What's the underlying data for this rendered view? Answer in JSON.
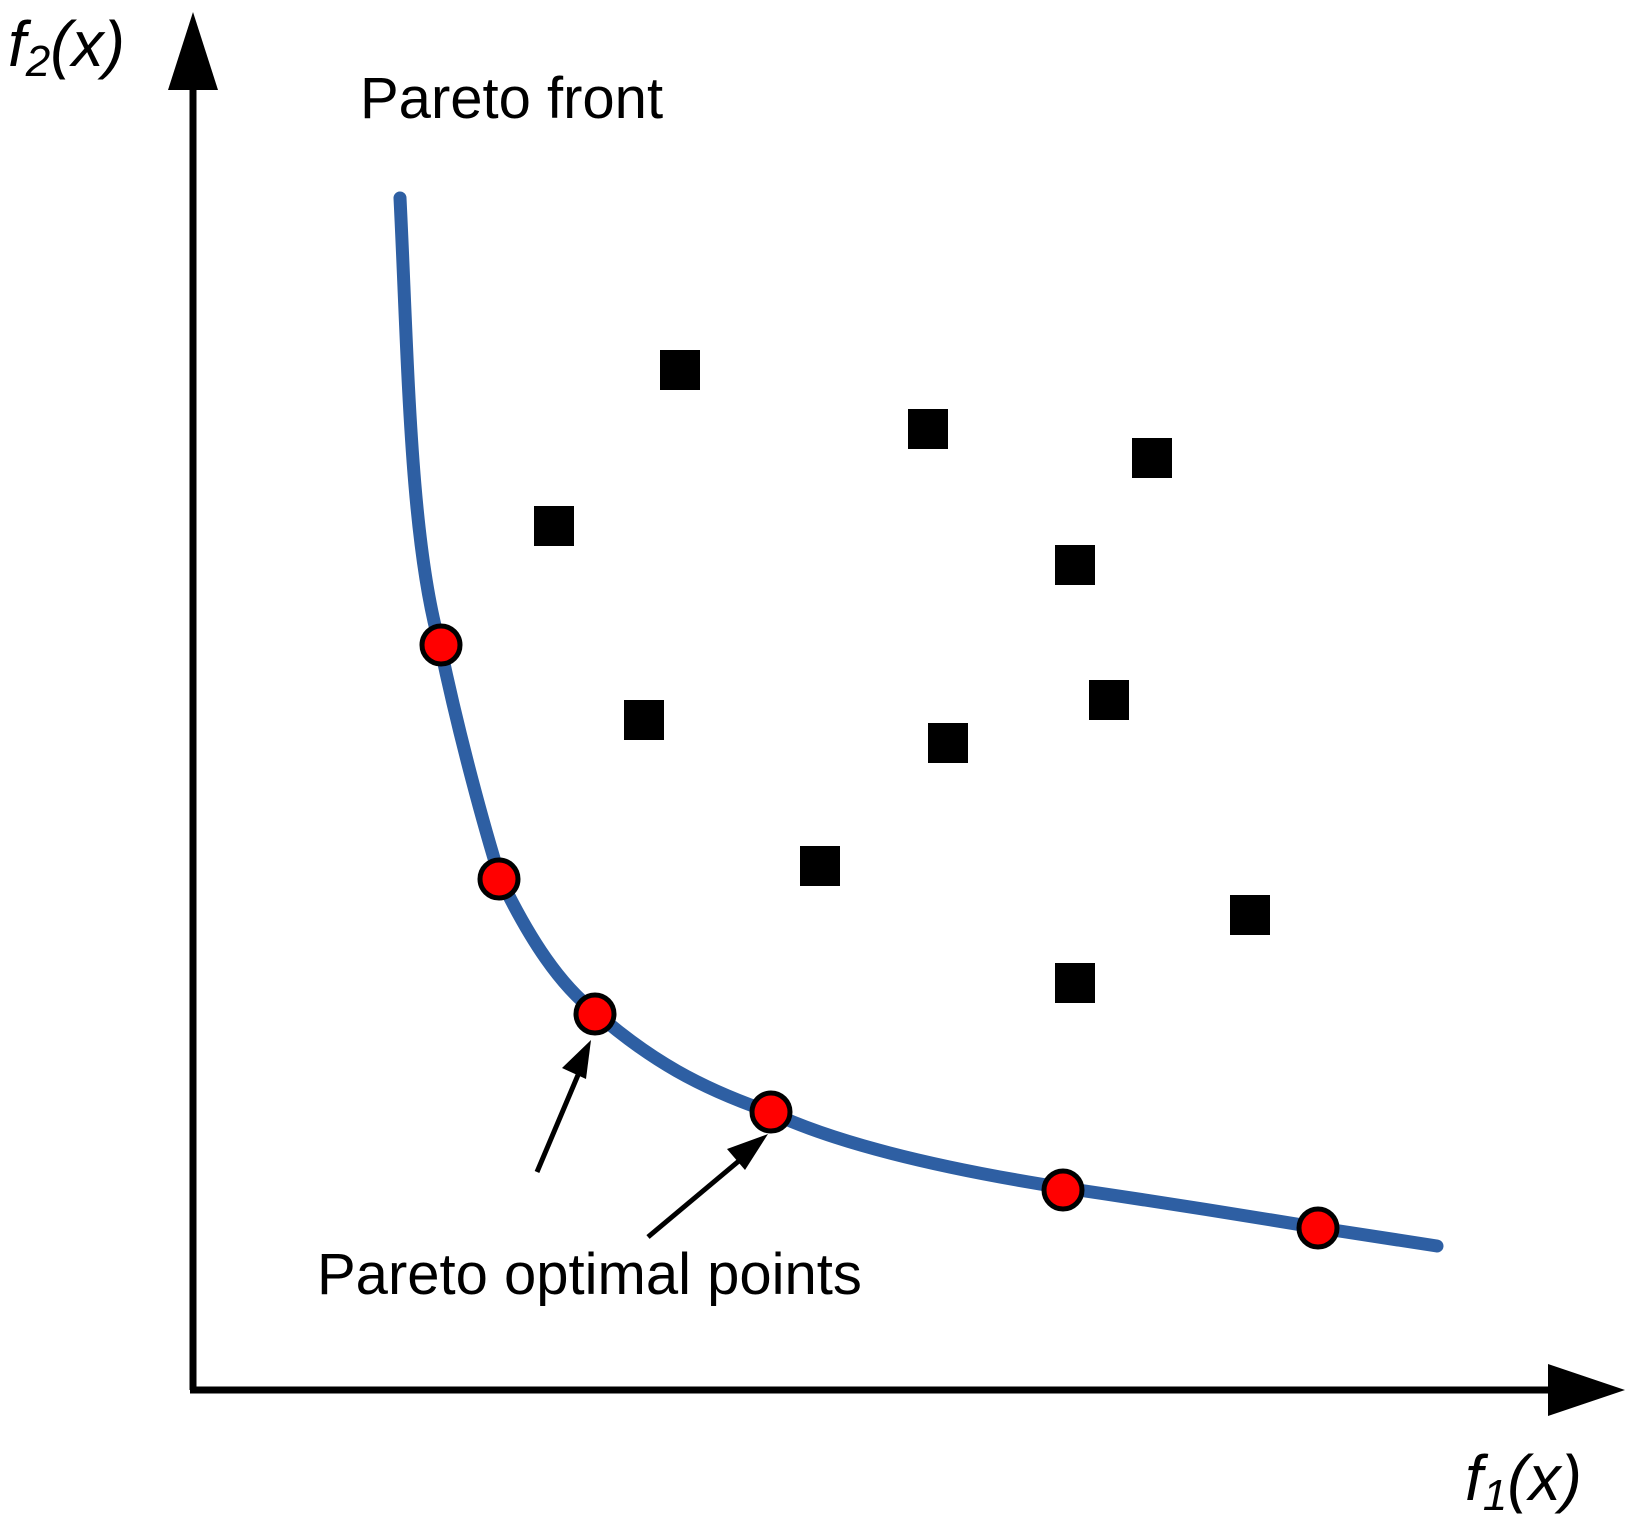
{
  "labels": {
    "y_axis_func": "f",
    "y_axis_sub": "2",
    "y_axis_arg": "(x)",
    "x_axis_func": "f",
    "x_axis_sub": "1",
    "x_axis_arg": "(x)",
    "front": "Pareto front",
    "optimal": "Pareto optimal points"
  },
  "colors": {
    "front_curve": "#2e5fa3",
    "optimal_point_fill": "#ff0000",
    "optimal_point_stroke": "#000000",
    "dominated_point": "#000000",
    "axis": "#000000"
  },
  "icons": {
    "optimal_point": "red-circle",
    "dominated_point": "black-square",
    "pointer": "arrow"
  }
}
